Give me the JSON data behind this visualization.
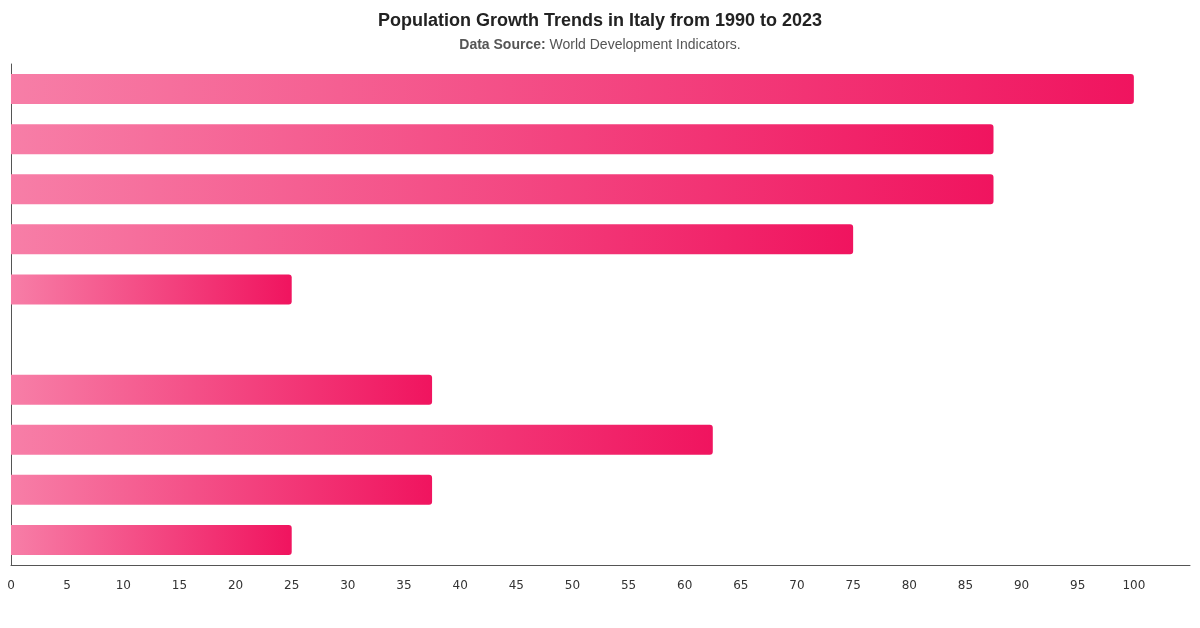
{
  "chart_data": {
    "type": "bar",
    "orientation": "horizontal",
    "title": "Population Growth Trends in Italy from 1990 to 2023",
    "subtitle": "Data Source: World Development Indicators.",
    "categories": [
      null,
      null,
      null,
      null,
      null,
      null,
      null,
      null,
      null,
      null
    ],
    "values": [
      100,
      87.5,
      87.5,
      75,
      25,
      null,
      37.5,
      62.5,
      37.5,
      25
    ],
    "color": "#f0145f",
    "xlim": [
      0,
      105
    ],
    "xticks": [
      0,
      5,
      10,
      15,
      20,
      25,
      30,
      35,
      40,
      45,
      50,
      55,
      60,
      65,
      70,
      75,
      80,
      85,
      90,
      95,
      100
    ],
    "grid": false,
    "tick_labels": "x"
  }
}
